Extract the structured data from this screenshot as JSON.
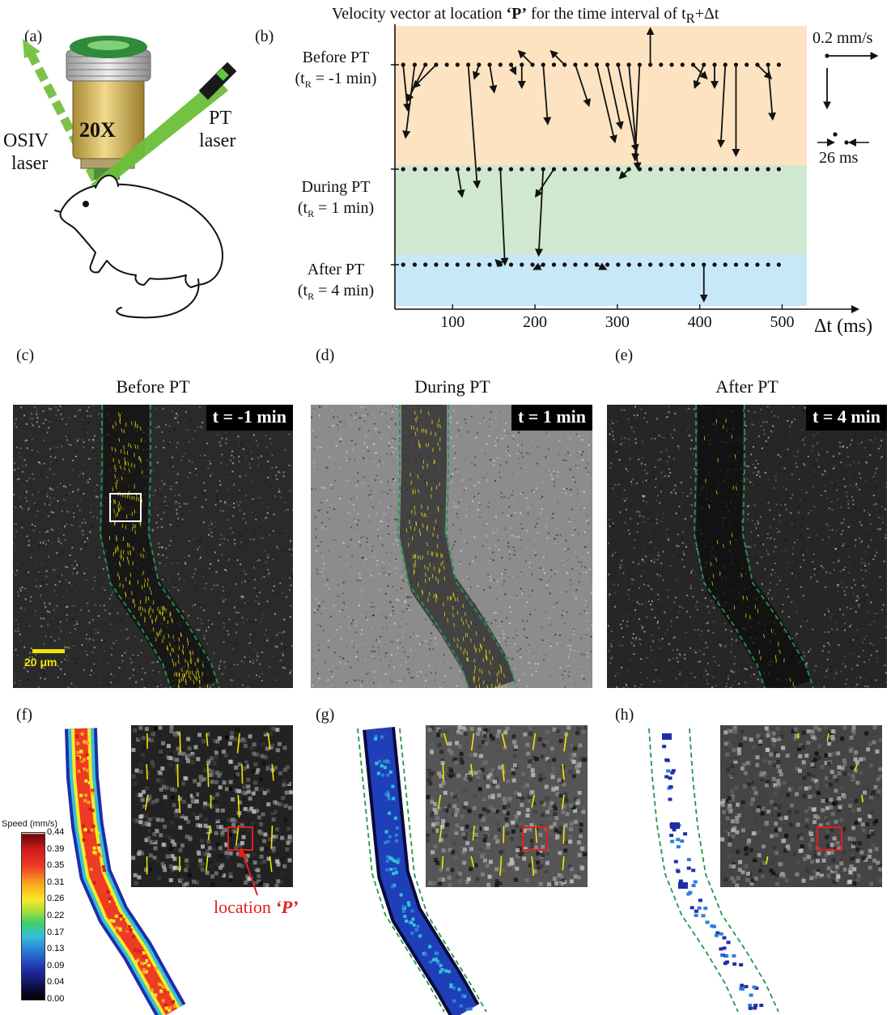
{
  "panel_labels": {
    "a": "(a)",
    "b": "(b)",
    "c": "(c)",
    "d": "(d)",
    "e": "(e)",
    "f": "(f)",
    "g": "(g)",
    "h": "(h)"
  },
  "setup": {
    "objective_label": "20X",
    "osiv_label_1": "OSIV",
    "osiv_label_2": "laser",
    "pt_label_1": "PT",
    "pt_label_2": "laser",
    "colors": {
      "osiv_beam": "#7cc24a",
      "pt_beam": "#6bbf3a",
      "objective_body": "#d8b85a"
    }
  },
  "chart_data": {
    "type": "quiver-timeline",
    "title_pre": "Velocity vector at location ",
    "title_p": "‘P’",
    "title_post": " for the time interval of t",
    "title_sub": "R",
    "title_tail": "+Δt",
    "xlabel": "Δt (ms)",
    "xticks": [
      100,
      200,
      300,
      400,
      500
    ],
    "xlim": [
      30,
      530
    ],
    "sampling_interval_label": "26 ms",
    "scale_label": "0.2 mm/s",
    "rows": [
      {
        "label_1": "Before PT",
        "label_2_pre": "(t",
        "label_2_sub": "R",
        "label_2_post": " = -1 min)",
        "color": "#fde3c2",
        "vectors": [
          [
            40,
            0.01,
            -0.1
          ],
          [
            54,
            -0.02,
            -0.16
          ],
          [
            67,
            -0.04,
            -0.08
          ],
          [
            80,
            -0.05,
            -0.05
          ],
          [
            93,
            0.0,
            0.0
          ],
          [
            106,
            0.0,
            0.0
          ],
          [
            119,
            0.02,
            -0.27
          ],
          [
            132,
            -0.01,
            -0.03
          ],
          [
            145,
            0.01,
            -0.06
          ],
          [
            158,
            0.0,
            0.0
          ],
          [
            171,
            0.01,
            -0.02
          ],
          [
            184,
            0.0,
            -0.05
          ],
          [
            197,
            -0.03,
            0.03
          ],
          [
            210,
            0.01,
            -0.13
          ],
          [
            223,
            0.0,
            0.0
          ],
          [
            236,
            -0.03,
            0.03
          ],
          [
            249,
            0.03,
            -0.09
          ],
          [
            262,
            0.0,
            0.0
          ],
          [
            275,
            0.04,
            -0.17
          ],
          [
            288,
            0.03,
            -0.14
          ],
          [
            301,
            0.04,
            -0.19
          ],
          [
            314,
            0.02,
            -0.23
          ],
          [
            327,
            -0.01,
            -0.21
          ],
          [
            340,
            0.0,
            0.08
          ],
          [
            353,
            0.0,
            0.0
          ],
          [
            366,
            0.0,
            0.0
          ],
          [
            379,
            0.0,
            0.0
          ],
          [
            392,
            0.03,
            -0.03
          ],
          [
            405,
            -0.02,
            -0.05
          ],
          [
            418,
            0.0,
            -0.05
          ],
          [
            431,
            -0.01,
            -0.18
          ],
          [
            444,
            0.0,
            -0.2
          ],
          [
            457,
            0.0,
            0.0
          ],
          [
            470,
            0.03,
            -0.03
          ],
          [
            483,
            0.01,
            -0.12
          ],
          [
            496,
            0.0,
            0.0
          ]
        ]
      },
      {
        "label_1": "During PT",
        "label_2_pre": "(t",
        "label_2_sub": "R",
        "label_2_post": " = 1 min)",
        "color": "#cfe8cf",
        "vectors": [
          [
            40,
            0.0,
            0.0
          ],
          [
            54,
            0.0,
            0.0
          ],
          [
            67,
            0.0,
            0.0
          ],
          [
            80,
            0.0,
            0.0
          ],
          [
            93,
            0.0,
            0.0
          ],
          [
            106,
            0.01,
            -0.06
          ],
          [
            119,
            0.0,
            0.0
          ],
          [
            132,
            0.0,
            0.0
          ],
          [
            145,
            0.0,
            0.0
          ],
          [
            158,
            0.01,
            -0.21
          ],
          [
            171,
            0.0,
            0.0
          ],
          [
            184,
            0.0,
            0.0
          ],
          [
            197,
            0.0,
            0.0
          ],
          [
            210,
            -0.01,
            -0.19
          ],
          [
            223,
            -0.04,
            -0.06
          ],
          [
            236,
            0.0,
            0.0
          ],
          [
            249,
            0.0,
            0.0
          ],
          [
            262,
            0.0,
            0.0
          ],
          [
            275,
            0.0,
            0.0
          ],
          [
            288,
            0.0,
            0.0
          ],
          [
            301,
            0.0,
            0.0
          ],
          [
            314,
            -0.02,
            -0.02
          ],
          [
            327,
            0.0,
            0.0
          ],
          [
            340,
            0.0,
            0.0
          ],
          [
            353,
            0.0,
            0.0
          ],
          [
            366,
            0.0,
            0.0
          ],
          [
            379,
            0.0,
            0.0
          ],
          [
            392,
            0.0,
            0.0
          ],
          [
            405,
            0.0,
            0.0
          ],
          [
            418,
            0.0,
            0.0
          ],
          [
            431,
            0.0,
            0.0
          ],
          [
            444,
            0.0,
            0.0
          ],
          [
            457,
            0.0,
            0.0
          ],
          [
            470,
            0.0,
            0.0
          ],
          [
            483,
            0.0,
            0.0
          ],
          [
            496,
            0.0,
            0.0
          ]
        ]
      },
      {
        "label_1": "After PT",
        "label_2_pre": "(t",
        "label_2_sub": "R",
        "label_2_post": " = 4 min)",
        "color": "#c6e8f7",
        "vectors": [
          [
            40,
            0.0,
            0.0
          ],
          [
            54,
            0.0,
            0.0
          ],
          [
            67,
            0.0,
            0.0
          ],
          [
            80,
            0.0,
            0.0
          ],
          [
            93,
            0.0,
            0.0
          ],
          [
            106,
            0.0,
            0.0
          ],
          [
            119,
            0.0,
            0.0
          ],
          [
            132,
            0.0,
            0.0
          ],
          [
            145,
            0.0,
            0.0
          ],
          [
            158,
            -0.01,
            0.01
          ],
          [
            171,
            0.0,
            0.0
          ],
          [
            184,
            0.0,
            0.0
          ],
          [
            197,
            0.0,
            0.0
          ],
          [
            210,
            -0.02,
            -0.01
          ],
          [
            223,
            0.0,
            0.0
          ],
          [
            236,
            0.0,
            0.0
          ],
          [
            249,
            0.0,
            0.0
          ],
          [
            262,
            0.0,
            0.0
          ],
          [
            275,
            0.02,
            -0.01
          ],
          [
            288,
            0.0,
            0.0
          ],
          [
            301,
            0.0,
            0.0
          ],
          [
            314,
            0.0,
            0.0
          ],
          [
            327,
            0.0,
            0.0
          ],
          [
            340,
            0.0,
            0.0
          ],
          [
            353,
            0.0,
            0.0
          ],
          [
            366,
            0.0,
            0.0
          ],
          [
            379,
            0.0,
            0.0
          ],
          [
            392,
            0.0,
            0.0
          ],
          [
            405,
            0.0,
            -0.08
          ],
          [
            418,
            0.0,
            0.0
          ],
          [
            431,
            0.0,
            0.0
          ],
          [
            444,
            0.0,
            0.0
          ],
          [
            457,
            0.0,
            0.0
          ],
          [
            470,
            0.0,
            0.0
          ],
          [
            483,
            0.0,
            0.0
          ],
          [
            496,
            0.0,
            0.0
          ]
        ]
      }
    ]
  },
  "micrographs": [
    {
      "header": "Before PT",
      "header_color": "#fde3c2",
      "time": "t = -1 min",
      "scale_bar": "20 μm"
    },
    {
      "header": "During PT",
      "header_color": "#cfe8cf",
      "time": "t = 1 min"
    },
    {
      "header": "After PT",
      "header_color": "#c6e8f7",
      "time": "t = 4 min"
    }
  ],
  "speed_maps": {
    "colorbar_title": "Speed (mm/s)",
    "colorbar_ticks": [
      "0.44",
      "0.39",
      "0.35",
      "0.31",
      "0.26",
      "0.22",
      "0.17",
      "0.13",
      "0.09",
      "0.04",
      "0.00"
    ],
    "location_label_pre": "location ",
    "location_label_p": "‘P’",
    "colors": {
      "roi_box": "#e0201f",
      "vessel_outline": "#1f9a4a",
      "vector": "#f2e600",
      "location_label": "#e0201f"
    }
  }
}
